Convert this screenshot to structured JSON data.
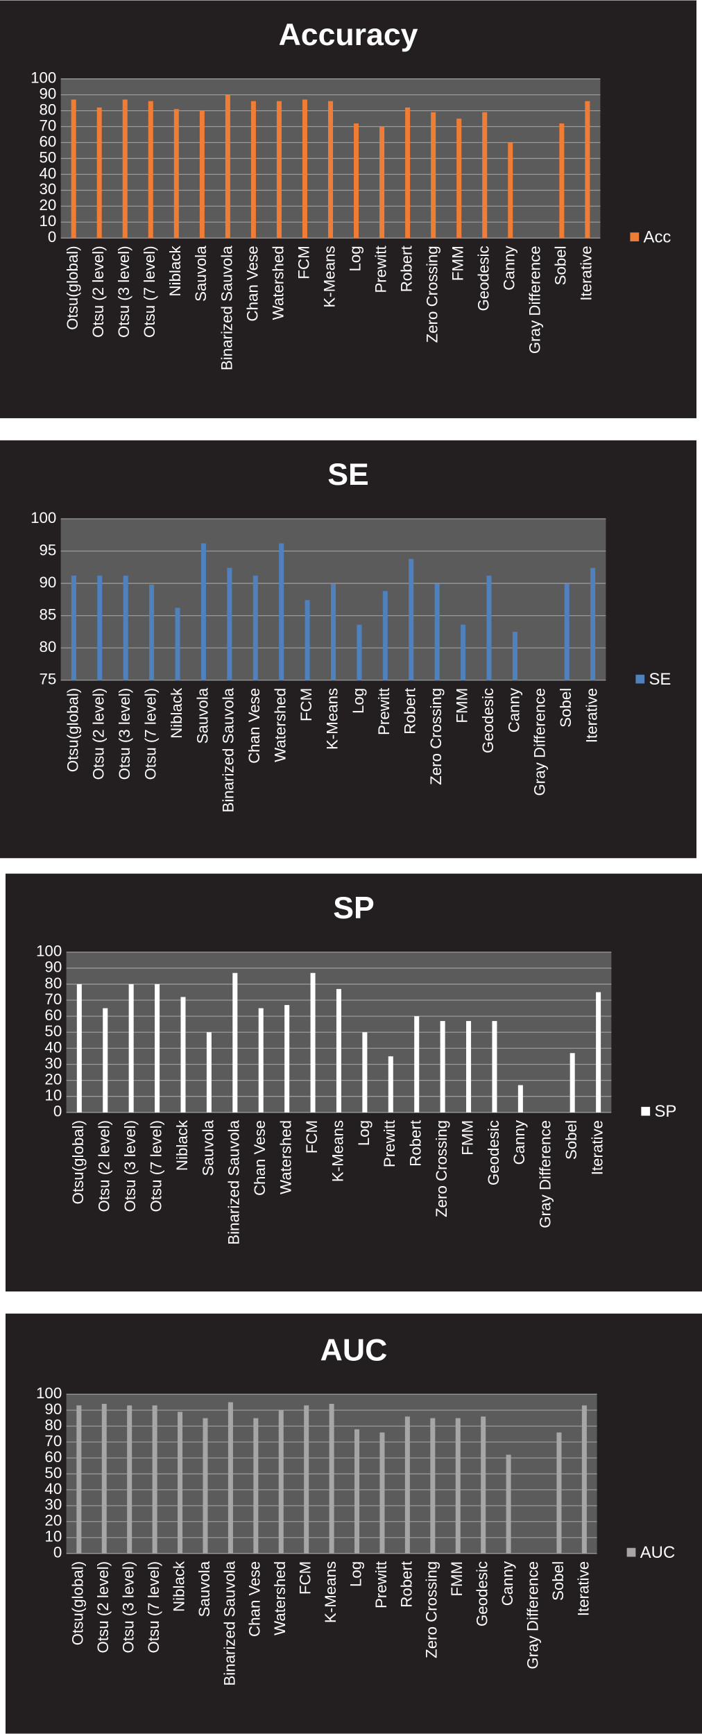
{
  "chart_data": [
    {
      "type": "bar",
      "title": "Accuracy",
      "categories": [
        "Otsu(global)",
        "Otsu (2 level)",
        "Otsu (3 level)",
        "Otsu (7 level)",
        "Niblack",
        "Sauvola",
        "Binarized Sauvola",
        "Chan Vese",
        "Watershed",
        "FCM",
        "K-Means",
        "Log",
        "Prewitt",
        "Robert",
        "Zero Crossing",
        "FMM",
        "Geodesic",
        "Canny",
        "Gray Difference",
        "Sobel",
        "Iterative"
      ],
      "series": [
        {
          "name": "Acc",
          "color": "#f07d35",
          "values": [
            87,
            82,
            87,
            86,
            81,
            80,
            90,
            86,
            86,
            87,
            86,
            72,
            70,
            82,
            79,
            75,
            79,
            60,
            null,
            72,
            86
          ]
        }
      ],
      "ylim": [
        0,
        100
      ],
      "yticks": [
        0,
        10,
        20,
        30,
        40,
        50,
        60,
        70,
        80,
        90,
        100
      ],
      "grid": true,
      "legend": "right"
    },
    {
      "type": "bar",
      "title": "SE",
      "categories": [
        "Otsu(global)",
        "Otsu (2 level)",
        "Otsu (3 level)",
        "Otsu (7 level)",
        "Niblack",
        "Sauvola",
        "Binarized Sauvola",
        "Chan Vese",
        "Watershed",
        "FCM",
        "K-Means",
        "Log",
        "Prewitt",
        "Robert",
        "Zero Crossing",
        "FMM",
        "Geodesic",
        "Canny",
        "Gray Difference",
        "Sobel",
        "Iterative"
      ],
      "series": [
        {
          "name": "SE",
          "color": "#4f81bd",
          "values": [
            91.2,
            91.2,
            91.2,
            89.8,
            86.2,
            96.2,
            92.4,
            91.2,
            96.2,
            87.4,
            89.9,
            83.6,
            88.8,
            93.8,
            89.9,
            83.6,
            91.2,
            82.5,
            null,
            89.9,
            92.4
          ]
        }
      ],
      "ylim": [
        75,
        100
      ],
      "yticks": [
        75,
        80,
        85,
        90,
        95,
        100
      ],
      "grid": true,
      "legend": "right"
    },
    {
      "type": "bar",
      "title": "SP",
      "categories": [
        "Otsu(global)",
        "Otsu (2 level)",
        "Otsu (3 level)",
        "Otsu (7 level)",
        "Niblack",
        "Sauvola",
        "Binarized Sauvola",
        "Chan Vese",
        "Watershed",
        "FCM",
        "K-Means",
        "Log",
        "Prewitt",
        "Robert",
        "Zero Crossing",
        "FMM",
        "Geodesic",
        "Canny",
        "Gray Difference",
        "Sobel",
        "Iterative"
      ],
      "series": [
        {
          "name": "SP",
          "color": "#ffffff",
          "values": [
            80,
            65,
            80,
            80,
            72,
            50,
            87,
            65,
            67,
            87,
            77,
            50,
            35,
            60,
            57,
            57,
            57,
            17,
            null,
            37,
            75
          ]
        }
      ],
      "ylim": [
        0,
        100
      ],
      "yticks": [
        0,
        10,
        20,
        30,
        40,
        50,
        60,
        70,
        80,
        90,
        100
      ],
      "grid": true,
      "legend": "right"
    },
    {
      "type": "bar",
      "title": "AUC",
      "categories": [
        "Otsu(global)",
        "Otsu (2 level)",
        "Otsu (3 level)",
        "Otsu (7 level)",
        "Niblack",
        "Sauvola",
        "Binarized Sauvola",
        "Chan Vese",
        "Watershed",
        "FCM",
        "K-Means",
        "Log",
        "Prewitt",
        "Robert",
        "Zero Crossing",
        "FMM",
        "Geodesic",
        "Canny",
        "Gray Difference",
        "Sobel",
        "Iterative"
      ],
      "series": [
        {
          "name": "AUC",
          "color": "#a6a6a6",
          "values": [
            93,
            94,
            93,
            93,
            89,
            85,
            95,
            85,
            90,
            93,
            94,
            78,
            76,
            86,
            85,
            85,
            86,
            62,
            null,
            76,
            93
          ]
        }
      ],
      "ylim": [
        0,
        100
      ],
      "yticks": [
        0,
        10,
        20,
        30,
        40,
        50,
        60,
        70,
        80,
        90,
        100
      ],
      "grid": true,
      "legend": "right"
    }
  ]
}
